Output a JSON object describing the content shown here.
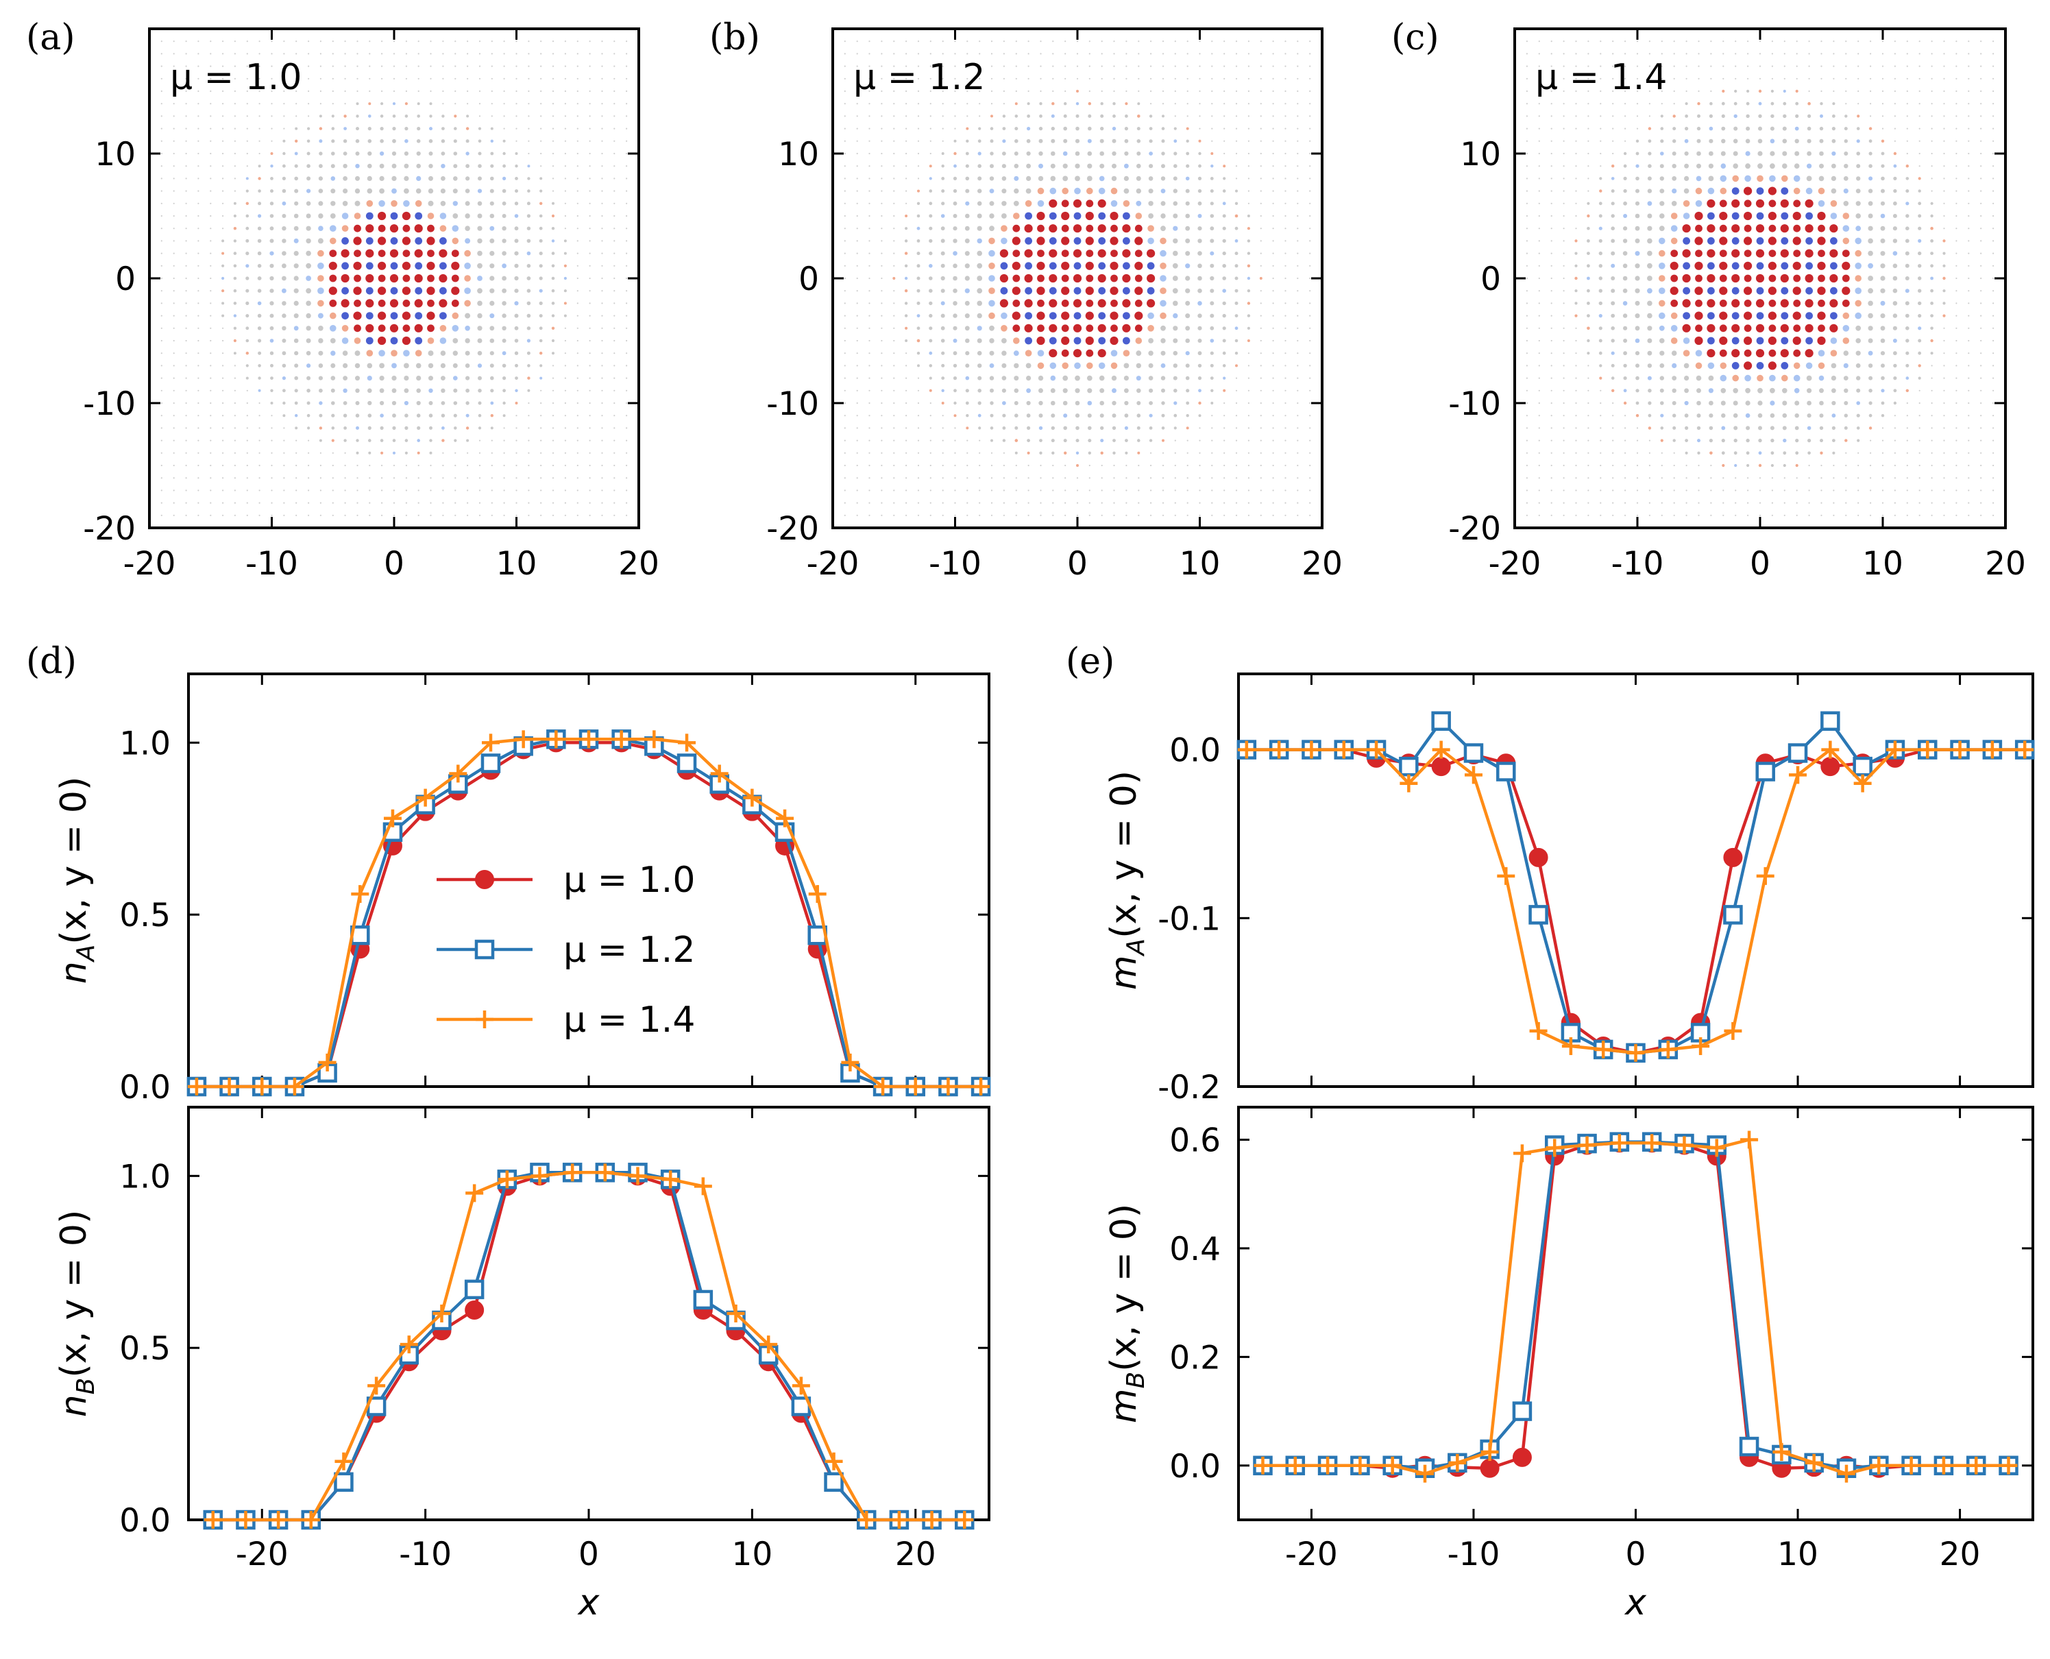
{
  "colors": {
    "mu10": "#d62728",
    "mu12": "#2a77b4",
    "mu14": "#ff8c16",
    "map_pos_strong": "#c8262b",
    "map_neg_strong": "#4a5fd0",
    "map_pos_weak": "#f1a98d",
    "map_neg_weak": "#a9c4f2",
    "map_neutral": "#c8c8c8"
  },
  "chart_data": [
    {
      "id": "a",
      "panel_label": "(a)",
      "type": "heatmap",
      "annotation": "μ = 1.0",
      "mu": 1.0,
      "core_radius": 5.5,
      "halo_radius": 14.5,
      "xlim": [
        -20,
        20
      ],
      "ylim": [
        -20,
        20
      ],
      "xticks": [
        "-20",
        "-10",
        "0",
        "10",
        "20"
      ],
      "yticks": [
        "-20",
        "-10",
        "0",
        "10"
      ]
    },
    {
      "id": "b",
      "panel_label": "(b)",
      "type": "heatmap",
      "annotation": "μ = 1.2",
      "mu": 1.2,
      "core_radius": 6.5,
      "halo_radius": 15.0,
      "xlim": [
        -20,
        20
      ],
      "ylim": [
        -20,
        20
      ],
      "xticks": [
        "-20",
        "-10",
        "0",
        "10",
        "20"
      ],
      "yticks": [
        "-20",
        "-10",
        "0",
        "10"
      ]
    },
    {
      "id": "c",
      "panel_label": "(c)",
      "type": "heatmap",
      "annotation": "μ = 1.4",
      "mu": 1.4,
      "core_radius": 7.6,
      "halo_radius": 15.5,
      "xlim": [
        -20,
        20
      ],
      "ylim": [
        -20,
        20
      ],
      "xticks": [
        "-20",
        "-10",
        "0",
        "10",
        "20"
      ],
      "yticks": [
        "-20",
        "-10",
        "0",
        "10"
      ]
    },
    {
      "id": "d_top",
      "panel_label": "(d)",
      "type": "line",
      "ylabel_main": "n",
      "ylabel_sub": "A",
      "ylabel_rest": "(x, y = 0)",
      "xlabel": "",
      "xlim": [
        -24.5,
        24.5
      ],
      "ylim": [
        0.0,
        1.2
      ],
      "yticks": [
        0.0,
        0.5,
        1.0
      ],
      "ytick_labels": [
        "0.0",
        "0.5",
        "1.0"
      ],
      "x": [
        -24,
        -22,
        -20,
        -18,
        -16,
        -14,
        -12,
        -10,
        -8,
        -6,
        -4,
        -2,
        0,
        2,
        4,
        6,
        8,
        10,
        12,
        14,
        16,
        18,
        20,
        22,
        24
      ],
      "series": [
        {
          "name": "μ = 1.0",
          "marker": "circle",
          "values": [
            0,
            0,
            0,
            0,
            0.04,
            0.4,
            0.7,
            0.8,
            0.86,
            0.92,
            0.98,
            1.0,
            1.0,
            1.0,
            0.98,
            0.92,
            0.86,
            0.8,
            0.7,
            0.4,
            0.04,
            0,
            0,
            0,
            0
          ]
        },
        {
          "name": "μ = 1.2",
          "marker": "square",
          "values": [
            0,
            0,
            0,
            0,
            0.04,
            0.44,
            0.74,
            0.82,
            0.88,
            0.94,
            0.99,
            1.01,
            1.01,
            1.01,
            0.99,
            0.94,
            0.88,
            0.82,
            0.74,
            0.44,
            0.04,
            0,
            0,
            0,
            0
          ]
        },
        {
          "name": "μ = 1.4",
          "marker": "plus",
          "values": [
            0,
            0,
            0,
            0,
            0.07,
            0.56,
            0.78,
            0.84,
            0.91,
            1.0,
            1.01,
            1.01,
            1.01,
            1.01,
            1.01,
            1.0,
            0.91,
            0.84,
            0.78,
            0.56,
            0.07,
            0,
            0,
            0,
            0
          ]
        }
      ],
      "legend": [
        "μ = 1.0",
        "μ = 1.2",
        "μ = 1.4"
      ]
    },
    {
      "id": "d_bottom",
      "panel_label": "",
      "type": "line",
      "ylabel_main": "n",
      "ylabel_sub": "B",
      "ylabel_rest": "(x, y = 0)",
      "xlabel": "x",
      "xlim": [
        -24.5,
        24.5
      ],
      "ylim": [
        0.0,
        1.2
      ],
      "yticks": [
        0.0,
        0.5,
        1.0
      ],
      "ytick_labels": [
        "0.0",
        "0.5",
        "1.0"
      ],
      "xticks": [
        -20,
        -10,
        0,
        10,
        20
      ],
      "xtick_labels": [
        "-20",
        "-10",
        "0",
        "10",
        "20"
      ],
      "x": [
        -23,
        -21,
        -19,
        -17,
        -15,
        -13,
        -11,
        -9,
        -7,
        -5,
        -3,
        -1,
        1,
        3,
        5,
        7,
        9,
        11,
        13,
        15,
        17,
        19,
        21,
        23
      ],
      "series": [
        {
          "name": "μ = 1.0",
          "marker": "circle",
          "values": [
            0,
            0,
            0,
            0,
            0.11,
            0.31,
            0.46,
            0.55,
            0.61,
            0.97,
            1.0,
            1.01,
            1.01,
            1.0,
            0.97,
            0.61,
            0.55,
            0.46,
            0.31,
            0.11,
            0,
            0,
            0,
            0
          ]
        },
        {
          "name": "μ = 1.2",
          "marker": "square",
          "values": [
            0,
            0,
            0,
            0,
            0.11,
            0.33,
            0.48,
            0.58,
            0.67,
            0.99,
            1.01,
            1.01,
            1.01,
            1.01,
            0.99,
            0.64,
            0.58,
            0.48,
            0.33,
            0.11,
            0,
            0,
            0,
            0
          ]
        },
        {
          "name": "μ = 1.4",
          "marker": "plus",
          "values": [
            0,
            0,
            0,
            0,
            0.17,
            0.39,
            0.51,
            0.6,
            0.95,
            0.99,
            1.0,
            1.01,
            1.01,
            1.0,
            0.99,
            0.97,
            0.6,
            0.51,
            0.39,
            0.17,
            0,
            0,
            0,
            0
          ]
        }
      ]
    },
    {
      "id": "e_top",
      "panel_label": "(e)",
      "type": "line",
      "ylabel_main": "m",
      "ylabel_sub": "A",
      "ylabel_rest": "(x, y = 0)",
      "xlabel": "",
      "xlim": [
        -24.5,
        24.5
      ],
      "ylim": [
        -0.2,
        0.045
      ],
      "yticks": [
        -0.2,
        -0.1,
        0.0
      ],
      "ytick_labels": [
        "-0.2",
        "-0.1",
        "0.0"
      ],
      "x": [
        -24,
        -22,
        -20,
        -18,
        -16,
        -14,
        -12,
        -10,
        -8,
        -6,
        -4,
        -2,
        0,
        2,
        4,
        6,
        8,
        10,
        12,
        14,
        16,
        18,
        20,
        22,
        24
      ],
      "series": [
        {
          "name": "μ = 1.0",
          "marker": "circle",
          "values": [
            0,
            0,
            0,
            0,
            -0.005,
            -0.008,
            -0.01,
            -0.003,
            -0.008,
            -0.064,
            -0.162,
            -0.176,
            -0.18,
            -0.176,
            -0.162,
            -0.064,
            -0.008,
            -0.003,
            -0.01,
            -0.008,
            -0.005,
            0,
            0,
            0,
            0
          ]
        },
        {
          "name": "μ = 1.2",
          "marker": "square",
          "values": [
            0,
            0,
            0,
            0,
            0,
            -0.01,
            0.017,
            -0.002,
            -0.013,
            -0.098,
            -0.168,
            -0.178,
            -0.18,
            -0.178,
            -0.168,
            -0.098,
            -0.013,
            -0.002,
            0.017,
            -0.01,
            0,
            0,
            0,
            0,
            0
          ]
        },
        {
          "name": "μ = 1.4",
          "marker": "plus",
          "values": [
            0,
            0,
            0,
            0,
            0,
            -0.02,
            0,
            -0.015,
            -0.075,
            -0.167,
            -0.176,
            -0.178,
            -0.18,
            -0.178,
            -0.176,
            -0.167,
            -0.075,
            -0.015,
            0,
            -0.02,
            0,
            0,
            0,
            0,
            0
          ]
        }
      ]
    },
    {
      "id": "e_bottom",
      "panel_label": "",
      "type": "line",
      "ylabel_main": "m",
      "ylabel_sub": "B",
      "ylabel_rest": "(x, y = 0)",
      "xlabel": "x",
      "xlim": [
        -24.5,
        24.5
      ],
      "ylim": [
        -0.1,
        0.66
      ],
      "yticks": [
        0.0,
        0.2,
        0.4,
        0.6
      ],
      "ytick_labels": [
        "0.0",
        "0.2",
        "0.4",
        "0.6"
      ],
      "xticks": [
        -20,
        -10,
        0,
        10,
        20
      ],
      "xtick_labels": [
        "-20",
        "-10",
        "0",
        "10",
        "20"
      ],
      "x": [
        -23,
        -21,
        -19,
        -17,
        -15,
        -13,
        -11,
        -9,
        -7,
        -5,
        -3,
        -1,
        1,
        3,
        5,
        7,
        9,
        11,
        13,
        15,
        17,
        19,
        21,
        23
      ],
      "series": [
        {
          "name": "μ = 1.0",
          "marker": "circle",
          "values": [
            0,
            0,
            0,
            0,
            -0.005,
            0,
            -0.003,
            -0.005,
            0.015,
            0.57,
            0.59,
            0.594,
            0.594,
            0.59,
            0.57,
            0.015,
            -0.005,
            -0.003,
            0,
            -0.005,
            0,
            0,
            0,
            0
          ]
        },
        {
          "name": "μ = 1.2",
          "marker": "square",
          "values": [
            0,
            0,
            0,
            0,
            0,
            -0.005,
            0.005,
            0.03,
            0.1,
            0.59,
            0.593,
            0.596,
            0.596,
            0.593,
            0.59,
            0.035,
            0.02,
            0.005,
            -0.005,
            0,
            0,
            0,
            0,
            0
          ]
        },
        {
          "name": "μ = 1.4",
          "marker": "plus",
          "values": [
            0,
            0,
            0,
            0,
            0,
            -0.015,
            0.005,
            0.025,
            0.575,
            0.585,
            0.59,
            0.594,
            0.594,
            0.59,
            0.585,
            0.6,
            0.025,
            0.005,
            -0.015,
            0,
            0,
            0,
            0,
            0
          ]
        }
      ]
    }
  ]
}
